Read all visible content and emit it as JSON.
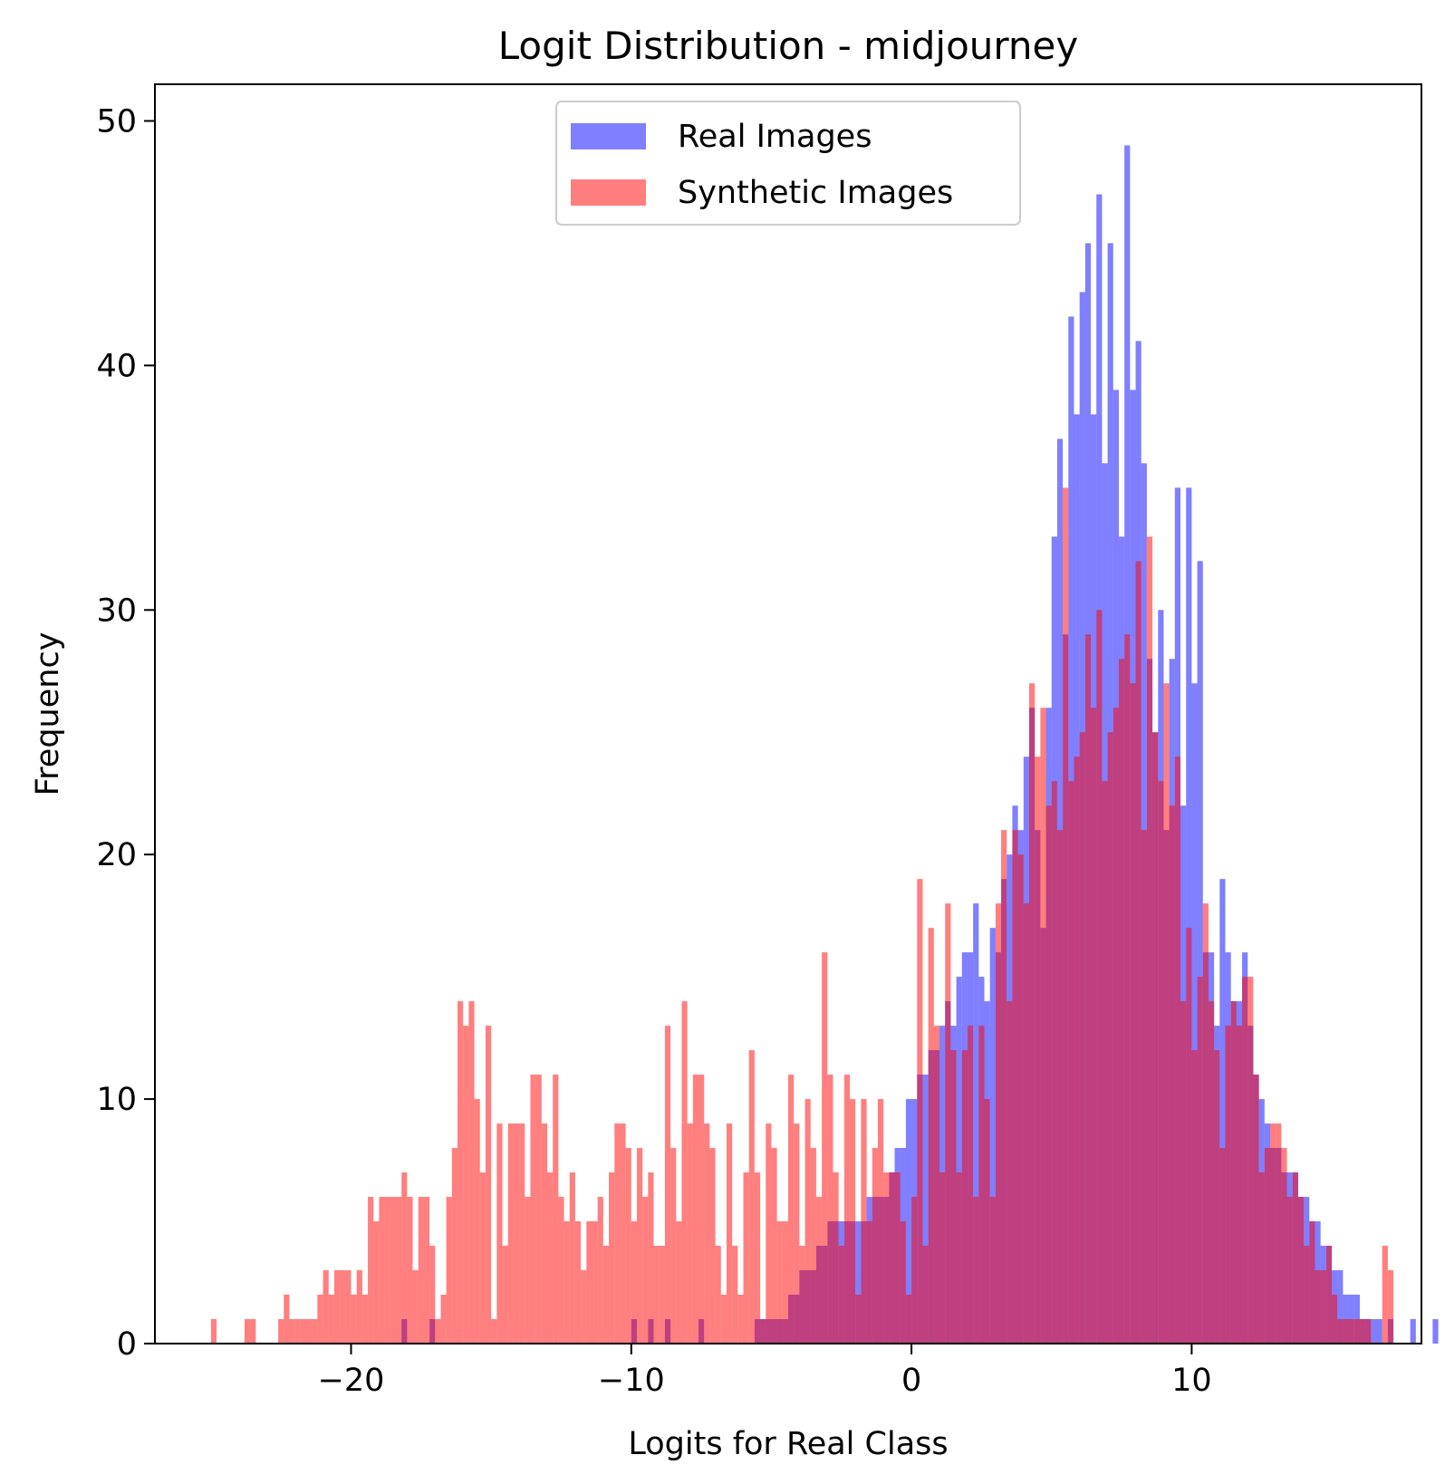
{
  "chart_data": {
    "type": "histogram",
    "title": "Logit Distribution - midjourney",
    "xlabel": "Logits for Real Class",
    "ylabel": "Frequency",
    "xlim": [
      -27.0,
      18.2
    ],
    "ylim": [
      0,
      51.5
    ],
    "xticks": [
      -20,
      -10,
      0,
      10
    ],
    "xtick_labels": [
      "−20",
      "−10",
      "0",
      "10"
    ],
    "yticks": [
      0,
      10,
      20,
      30,
      40,
      50
    ],
    "ytick_labels": [
      "0",
      "10",
      "20",
      "30",
      "40",
      "50"
    ],
    "bin_width": 0.2,
    "legend": {
      "placement": "upper-center",
      "entries": [
        "Real Images",
        "Synthetic Images"
      ]
    },
    "series": [
      {
        "name": "Real Images",
        "color": "#0000ff",
        "alpha": 0.5,
        "x_start": -20.0,
        "counts": [
          0,
          0,
          0,
          0,
          0,
          0,
          0,
          0,
          0,
          1,
          0,
          0,
          0,
          0,
          1,
          0,
          0,
          0,
          0,
          0,
          0,
          0,
          0,
          0,
          0,
          0,
          0,
          0,
          0,
          0,
          0,
          0,
          0,
          0,
          0,
          0,
          0,
          0,
          0,
          0,
          0,
          0,
          0,
          0,
          0,
          0,
          0,
          0,
          0,
          0,
          1,
          0,
          0,
          1,
          0,
          0,
          1,
          0,
          0,
          0,
          0,
          0,
          1,
          0,
          0,
          0,
          0,
          0,
          0,
          0,
          0,
          0,
          1,
          1,
          1,
          1,
          1,
          1,
          2,
          2,
          3,
          3,
          3,
          4,
          4,
          5,
          5,
          5,
          5,
          5,
          5,
          5,
          6,
          6,
          6,
          6,
          7,
          8,
          8,
          10,
          10,
          11,
          11,
          12,
          12,
          13,
          14,
          13,
          15,
          16,
          16,
          18,
          15,
          14,
          17,
          16,
          19,
          20,
          22,
          21,
          24,
          26,
          21,
          17,
          26,
          33,
          37,
          29,
          42,
          38,
          43,
          45,
          38,
          47,
          36,
          45,
          39,
          33,
          49,
          39,
          41,
          36,
          28,
          25,
          30,
          21,
          28,
          35,
          22,
          35,
          27,
          32,
          16,
          16,
          13,
          19,
          16,
          14,
          14,
          16,
          13,
          11,
          10,
          9,
          8,
          8,
          7,
          7,
          7,
          6,
          6,
          5,
          5,
          4,
          4,
          3,
          3,
          2,
          2,
          2,
          1,
          1,
          1,
          1,
          0,
          1,
          0,
          0,
          0,
          1,
          0,
          0,
          0,
          1,
          0,
          0,
          1,
          0,
          0,
          0,
          1
        ]
      },
      {
        "name": "Synthetic Images",
        "color": "#ff0000",
        "alpha": 0.5,
        "x_start": -25.0,
        "counts": [
          1,
          0,
          0,
          0,
          0,
          0,
          1,
          1,
          0,
          0,
          0,
          0,
          1,
          2,
          1,
          1,
          1,
          1,
          1,
          2,
          3,
          2,
          3,
          3,
          3,
          2,
          3,
          2,
          6,
          5,
          6,
          6,
          6,
          6,
          7,
          6,
          3,
          6,
          6,
          4,
          1,
          2,
          6,
          8,
          14,
          13,
          14,
          10,
          7,
          13,
          1,
          9,
          4,
          9,
          9,
          9,
          6,
          11,
          11,
          9,
          7,
          11,
          6,
          5,
          7,
          5,
          3,
          5,
          5,
          6,
          4,
          7,
          9,
          9,
          8,
          5,
          8,
          6,
          7,
          4,
          4,
          13,
          8,
          5,
          14,
          9,
          11,
          11,
          9,
          8,
          4,
          2,
          9,
          4,
          2,
          7,
          12,
          7,
          1,
          9,
          8,
          5,
          5,
          11,
          9,
          4,
          10,
          8,
          6,
          16,
          11,
          7,
          4,
          11,
          10,
          2,
          10,
          5,
          8,
          10,
          7,
          7,
          7,
          5,
          2,
          6,
          19,
          4,
          17,
          13,
          7,
          18,
          12,
          7,
          12,
          13,
          6,
          13,
          10,
          6,
          18,
          21,
          14,
          21,
          20,
          18,
          27,
          24,
          26,
          22,
          23,
          21,
          35,
          23,
          24,
          25,
          29,
          26,
          30,
          23,
          25,
          26,
          28,
          29,
          27,
          32,
          21,
          33,
          25,
          23,
          27,
          22,
          24,
          14,
          17,
          12,
          15,
          18,
          14,
          12,
          8,
          13,
          14,
          13,
          15,
          15,
          11,
          7,
          8,
          9,
          9,
          8,
          6,
          7,
          6,
          4,
          5,
          3,
          3,
          4,
          2,
          1,
          1,
          1,
          1,
          1,
          1,
          0,
          0,
          4,
          3,
          0,
          0,
          0,
          0,
          0,
          0,
          0,
          0,
          0,
          0,
          2,
          0,
          0,
          1,
          0,
          1,
          0,
          0,
          1,
          0,
          0,
          0,
          1
        ]
      }
    ]
  }
}
